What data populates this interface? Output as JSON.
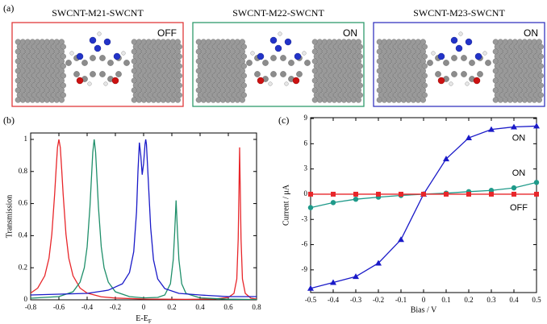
{
  "panel_a": {
    "label": "(a)",
    "boxes": [
      {
        "title": "SWCNT-M21-SWCNT",
        "state": "OFF",
        "color": "#e0383a"
      },
      {
        "title": "SWCNT-M22-SWCNT",
        "state": "ON",
        "color": "#2f9a6c"
      },
      {
        "title": "SWCNT-M23-SWCNT",
        "state": "ON",
        "color": "#3535c0"
      }
    ]
  },
  "chart_data": [
    {
      "type": "line",
      "panel_label": "(b)",
      "xlabel": {
        "text": "E-E",
        "subscript": "F"
      },
      "ylabel": "Transmission",
      "xlim": [
        -0.8,
        0.8
      ],
      "ylim": [
        0,
        1.04
      ],
      "xticks": [
        -0.8,
        -0.6,
        -0.4,
        -0.2,
        0,
        0.2,
        0.4,
        0.6,
        0.8
      ],
      "yticks": [
        0,
        0.2,
        0.4,
        0.6,
        0.8,
        1
      ],
      "series": [
        {
          "color": "#e8262a",
          "x": [
            -0.8,
            -0.75,
            -0.7,
            -0.67,
            -0.65,
            -0.63,
            -0.62,
            -0.61,
            -0.6,
            -0.59,
            -0.58,
            -0.57,
            -0.55,
            -0.53,
            -0.5,
            -0.45,
            -0.4,
            -0.3,
            -0.2,
            0,
            0.3,
            0.5,
            0.6,
            0.64,
            0.66,
            0.67,
            0.675,
            0.68,
            0.685,
            0.69,
            0.7,
            0.72,
            0.76,
            0.8
          ],
          "values": [
            0.042,
            0.073,
            0.15,
            0.26,
            0.41,
            0.66,
            0.81,
            0.95,
            1.0,
            0.95,
            0.81,
            0.66,
            0.41,
            0.26,
            0.15,
            0.073,
            0.042,
            0.019,
            0.011,
            0.005,
            0.003,
            0.005,
            0.015,
            0.04,
            0.13,
            0.38,
            0.66,
            0.95,
            0.66,
            0.38,
            0.13,
            0.04,
            0.01,
            0.005
          ]
        },
        {
          "color": "#1f8f6a",
          "x": [
            -0.8,
            -0.6,
            -0.5,
            -0.45,
            -0.42,
            -0.4,
            -0.38,
            -0.37,
            -0.36,
            -0.35,
            -0.34,
            -0.33,
            -0.32,
            -0.3,
            -0.28,
            -0.25,
            -0.2,
            -0.1,
            0,
            0.1,
            0.15,
            0.19,
            0.21,
            0.22,
            0.23,
            0.24,
            0.25,
            0.27,
            0.3,
            0.4,
            0.6,
            0.8
          ],
          "values": [
            0.01,
            0.02,
            0.05,
            0.11,
            0.2,
            0.33,
            0.58,
            0.75,
            0.92,
            1.0,
            0.92,
            0.75,
            0.58,
            0.33,
            0.2,
            0.11,
            0.05,
            0.02,
            0.012,
            0.015,
            0.03,
            0.1,
            0.25,
            0.42,
            0.62,
            0.42,
            0.25,
            0.1,
            0.04,
            0.012,
            0.004,
            0.002
          ]
        },
        {
          "color": "#1a1ac8",
          "x": [
            -0.8,
            -0.6,
            -0.4,
            -0.25,
            -0.15,
            -0.1,
            -0.07,
            -0.05,
            -0.04,
            -0.03,
            -0.02,
            -0.01,
            0,
            0.01,
            0.015,
            0.02,
            0.03,
            0.05,
            0.07,
            0.1,
            0.15,
            0.25,
            0.4,
            0.6,
            0.8
          ],
          "values": [
            0.03,
            0.035,
            0.04,
            0.06,
            0.1,
            0.17,
            0.3,
            0.55,
            0.8,
            0.98,
            0.9,
            0.78,
            0.85,
            0.97,
            1.0,
            0.97,
            0.8,
            0.45,
            0.25,
            0.13,
            0.07,
            0.04,
            0.03,
            0.02,
            0.02
          ]
        }
      ]
    },
    {
      "type": "line",
      "panel_label": "(c)",
      "xlabel": "Bias / V",
      "ylabel": "Current / μA",
      "xlim": [
        -0.5,
        0.5
      ],
      "ylim": [
        -11.7,
        9.1
      ],
      "xticks": [
        -0.5,
        -0.4,
        -0.3,
        -0.2,
        -0.1,
        0,
        0.1,
        0.2,
        0.3,
        0.4,
        0.5
      ],
      "yticks": [
        -9,
        -6,
        -3,
        0,
        3,
        6,
        9
      ],
      "x": [
        -0.5,
        -0.4,
        -0.3,
        -0.2,
        -0.1,
        0,
        0.1,
        0.2,
        0.3,
        0.4,
        0.5
      ],
      "series": [
        {
          "color": "#1a1ac8",
          "marker": "triangle",
          "label": "ON",
          "values": [
            -11.2,
            -10.5,
            -9.8,
            -8.2,
            -5.4,
            0,
            4.2,
            6.7,
            7.7,
            8.0,
            8.1
          ]
        },
        {
          "color": "#1f9a8a",
          "marker": "circle",
          "label": "ON",
          "values": [
            -1.6,
            -1.0,
            -0.6,
            -0.35,
            -0.15,
            0,
            0.12,
            0.3,
            0.45,
            0.75,
            1.4
          ]
        },
        {
          "color": "#e8262a",
          "marker": "square",
          "label": "OFF",
          "values": [
            0,
            0,
            0,
            0,
            0,
            0,
            0,
            0,
            0,
            0,
            0
          ]
        }
      ]
    }
  ]
}
